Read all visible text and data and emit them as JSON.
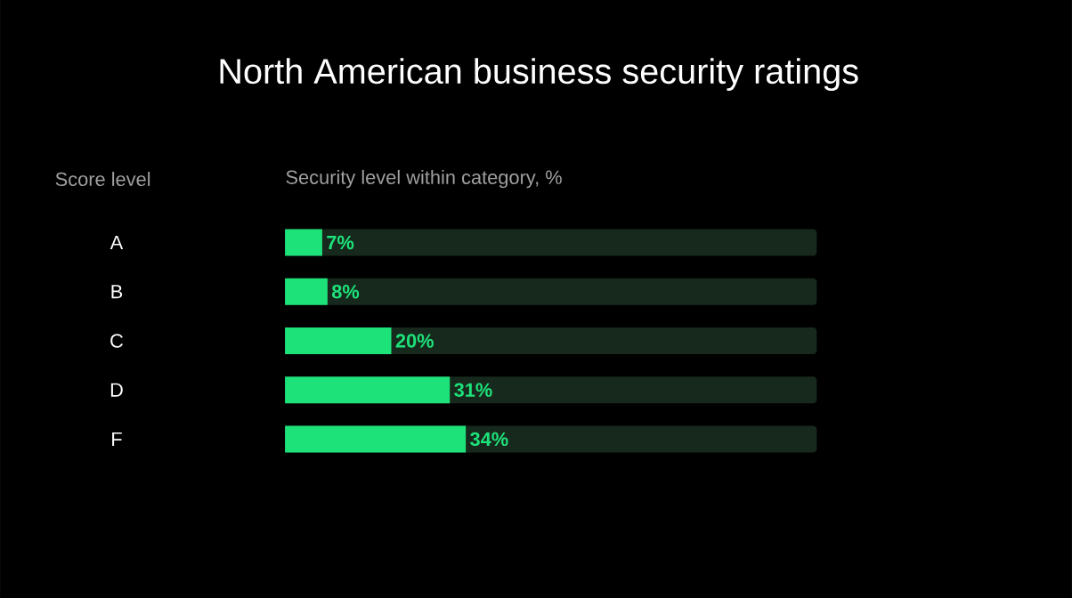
{
  "chart_data": {
    "type": "bar",
    "orientation": "horizontal",
    "title": "North American business security ratings",
    "annotations": [
      "Score level",
      "Security level within category, %"
    ],
    "categories": [
      "A",
      "B",
      "C",
      "D",
      "F"
    ],
    "values": [
      7,
      8,
      20,
      31,
      34
    ],
    "value_labels": [
      "7%",
      "8%",
      "20%",
      "31%",
      "34%"
    ],
    "color": "#1de27a",
    "xlim": [
      0,
      100
    ]
  }
}
